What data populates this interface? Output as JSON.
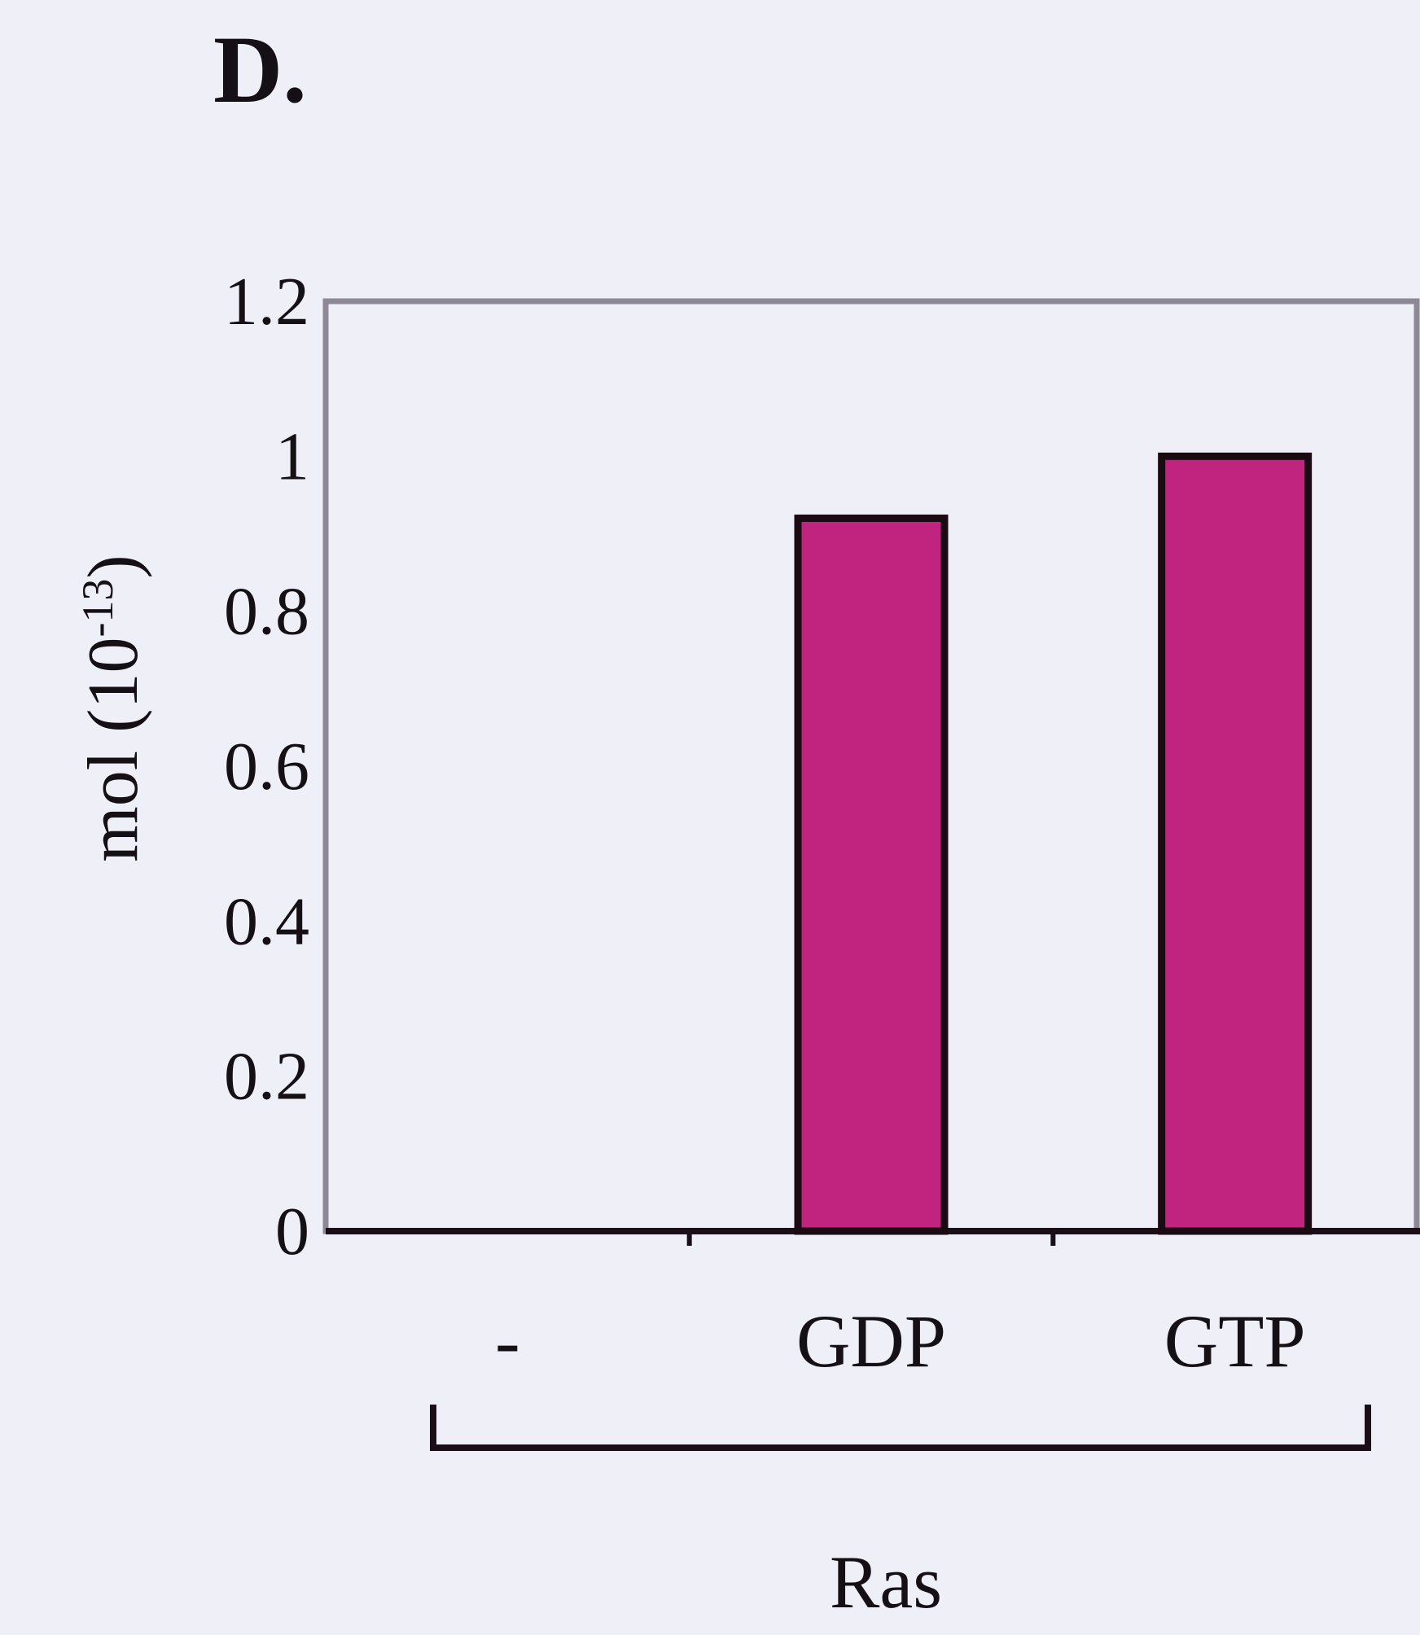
{
  "panel_label": "D.",
  "chart_data": {
    "type": "bar",
    "categories": [
      "-",
      "GDP",
      "GTP"
    ],
    "values": [
      0,
      0.92,
      1.0
    ],
    "ylabel": "mol (10",
    "ylabel_exponent": "-13",
    "ylabel_close": ")",
    "ylim": [
      0,
      1.2
    ],
    "yticks": [
      {
        "value": 0,
        "label": "0"
      },
      {
        "value": 0.2,
        "label": "0.2"
      },
      {
        "value": 0.4,
        "label": "0.4"
      },
      {
        "value": 0.6,
        "label": "0.6"
      },
      {
        "value": 0.8,
        "label": "0.8"
      },
      {
        "value": 1.0,
        "label": "1"
      },
      {
        "value": 1.2,
        "label": "1.2"
      }
    ],
    "group_label": "Ras",
    "grid": false,
    "colors": {
      "bar_fill": "#c0247f",
      "bar_stroke": "#1a0a12",
      "frame": "#8e8896",
      "axis": "#1a0f18",
      "background": "#eeeff7"
    }
  }
}
